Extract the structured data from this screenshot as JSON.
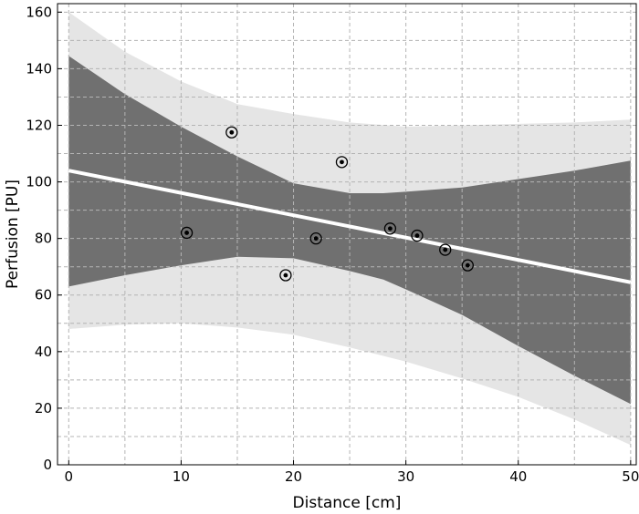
{
  "chart_data": {
    "type": "scatter",
    "xlabel": "Distance [cm]",
    "ylabel": "Perfusion [PU]",
    "xlim": [
      -1,
      50.5
    ],
    "ylim": [
      0,
      163
    ],
    "xticks": [
      0,
      10,
      20,
      30,
      40,
      50
    ],
    "yticks": [
      0,
      20,
      40,
      60,
      80,
      100,
      120,
      140,
      160
    ],
    "grid": true,
    "points": [
      {
        "x": 10.5,
        "y": 82
      },
      {
        "x": 14.5,
        "y": 117.5
      },
      {
        "x": 19.3,
        "y": 67
      },
      {
        "x": 22,
        "y": 80
      },
      {
        "x": 24.3,
        "y": 107
      },
      {
        "x": 28.6,
        "y": 83.5
      },
      {
        "x": 31,
        "y": 81
      },
      {
        "x": 33.5,
        "y": 76
      },
      {
        "x": 35.5,
        "y": 70.5
      }
    ],
    "fit_line": {
      "x": [
        0,
        50
      ],
      "y": [
        104,
        64.5
      ]
    },
    "confidence_band": {
      "x": [
        0,
        5,
        10,
        15,
        20,
        25,
        28,
        30,
        35,
        40,
        45,
        50
      ],
      "upper": [
        144.5,
        131,
        119.5,
        109,
        99.5,
        96,
        96,
        96.5,
        98,
        101,
        104,
        107.5
      ],
      "lower": [
        63,
        67,
        70.5,
        73.5,
        73,
        68.5,
        65.5,
        62,
        53,
        42,
        31.5,
        21.5
      ]
    },
    "prediction_band": {
      "x": [
        0,
        5,
        10,
        15,
        20,
        25,
        30,
        35,
        40,
        45,
        50
      ],
      "upper": [
        160,
        146,
        135.5,
        127.5,
        124,
        121,
        119.5,
        120,
        120.5,
        121,
        122
      ],
      "lower": [
        48,
        49.5,
        50,
        48.5,
        46,
        41.5,
        36.5,
        30.5,
        24,
        16,
        7
      ]
    },
    "colors": {
      "prediction_band": "#e5e5e5",
      "confidence_band": "#707070",
      "fit_line": "#ffffff",
      "grid": "#b4b4b4",
      "marker": "#000000"
    }
  }
}
